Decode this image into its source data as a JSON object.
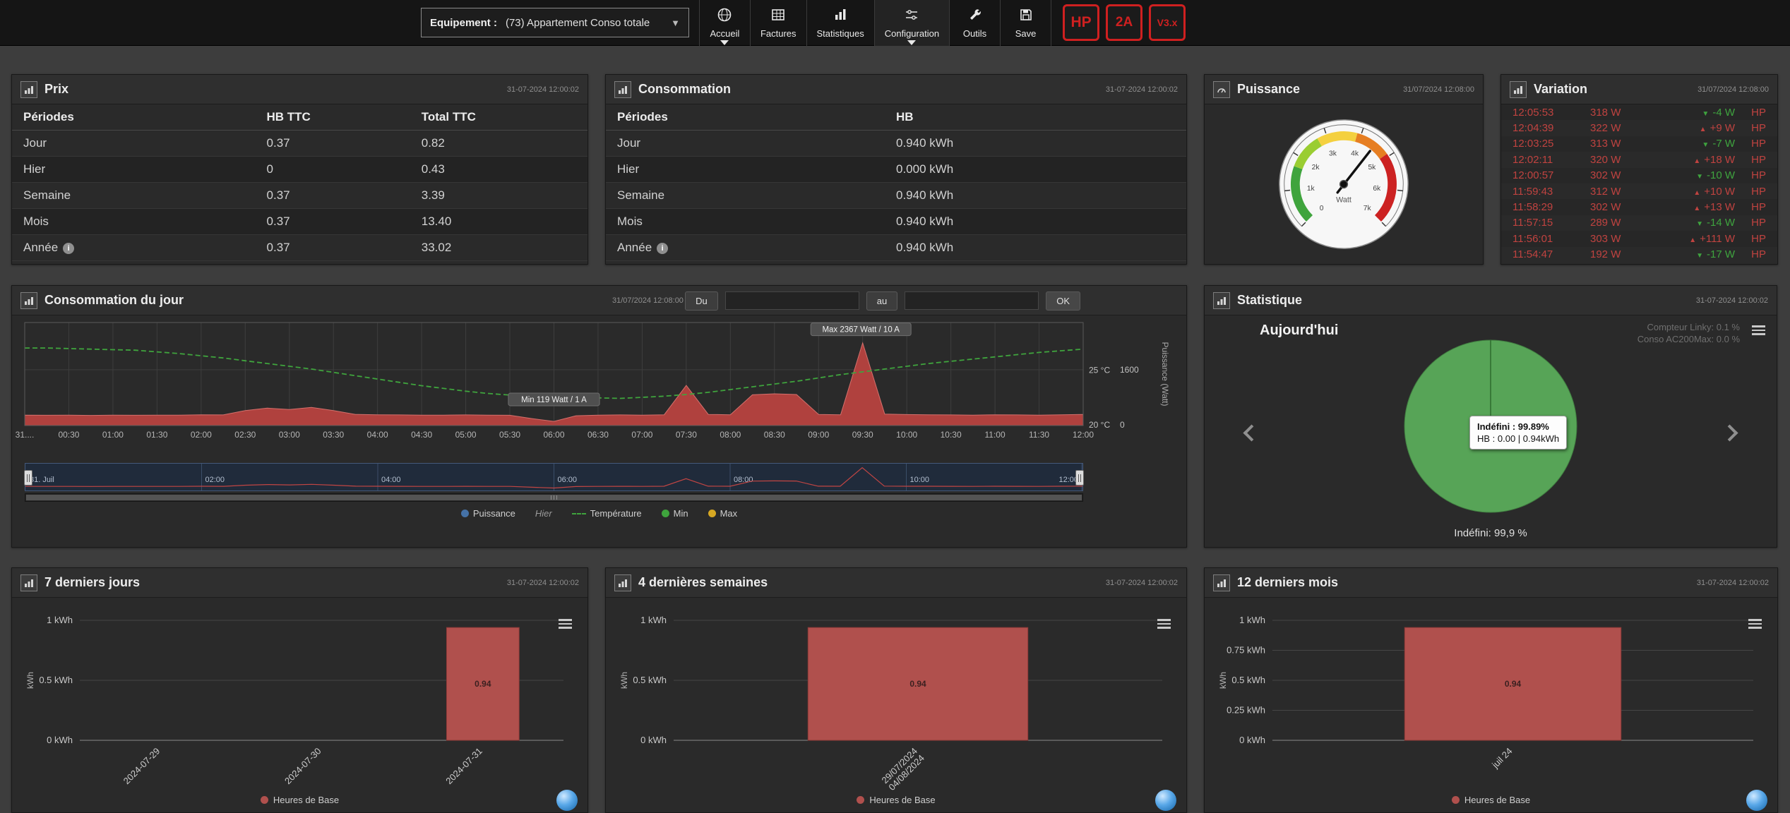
{
  "topbar": {
    "equipment_label": "Equipement :",
    "equipment_value": "(73) Appartement Conso totale",
    "nav": [
      {
        "id": "accueil",
        "label": "Accueil",
        "icon": "globe-icon",
        "dropdown": true
      },
      {
        "id": "factures",
        "label": "Factures",
        "icon": "invoices-icon",
        "dropdown": false
      },
      {
        "id": "statistiques",
        "label": "Statistiques",
        "icon": "bar-chart-icon",
        "dropdown": false
      },
      {
        "id": "configuration",
        "label": "Configuration",
        "icon": "sliders-icon",
        "dropdown": true
      },
      {
        "id": "outils",
        "label": "Outils",
        "icon": "wrench-icon",
        "dropdown": false
      },
      {
        "id": "save",
        "label": "Save",
        "icon": "floppy-icon",
        "dropdown": false
      }
    ],
    "badges": [
      {
        "text": "HP"
      },
      {
        "text": "2A"
      },
      {
        "text": "V3.x"
      }
    ]
  },
  "prix": {
    "title": "Prix",
    "timestamp": "31-07-2024 12:00:02",
    "columns": [
      "Périodes",
      "HB TTC",
      "Total TTC"
    ],
    "rows": [
      {
        "periode": "Jour",
        "hb": "0.37",
        "total": "0.82"
      },
      {
        "periode": "Hier",
        "hb": "0",
        "total": "0.43",
        "stripe": true
      },
      {
        "periode": "Semaine",
        "hb": "0.37",
        "total": "3.39"
      },
      {
        "periode": "Mois",
        "hb": "0.37",
        "total": "13.40",
        "stripe": true
      },
      {
        "periode": "Année",
        "hb": "0.37",
        "total": "33.02",
        "info": true
      }
    ]
  },
  "consommation": {
    "title": "Consommation",
    "timestamp": "31-07-2024 12:00:02",
    "columns": [
      "Périodes",
      "HB"
    ],
    "rows": [
      {
        "periode": "Jour",
        "hb": "0.940 kWh"
      },
      {
        "periode": "Hier",
        "hb": "0.000 kWh",
        "stripe": true
      },
      {
        "periode": "Semaine",
        "hb": "0.940 kWh"
      },
      {
        "periode": "Mois",
        "hb": "0.940 kWh",
        "stripe": true
      },
      {
        "periode": "Année",
        "hb": "0.940 kWh",
        "info": true
      }
    ]
  },
  "puissance": {
    "title": "Puissance",
    "timestamp": "31/07/2024 12:08:00",
    "gauge": {
      "unit": "Watt",
      "labels": [
        "0",
        "1k",
        "2k",
        "3k",
        "4k",
        "5k",
        "6k",
        "7k"
      ]
    }
  },
  "variation": {
    "title": "Variation",
    "timestamp": "31/07/2024 12:08:00",
    "rows": [
      {
        "time": "12:05:53",
        "watts": "318 W",
        "delta": "-4 W",
        "dir": "down",
        "icon": "arrow-down-icon",
        "tarif": "HP"
      },
      {
        "time": "12:04:39",
        "watts": "322 W",
        "delta": "+9 W",
        "dir": "up",
        "icon": "arrow-up-icon",
        "tarif": "HP"
      },
      {
        "time": "12:03:25",
        "watts": "313 W",
        "delta": "-7 W",
        "dir": "down",
        "icon": "arrow-down-icon",
        "tarif": "HP"
      },
      {
        "time": "12:02:11",
        "watts": "320 W",
        "delta": "+18 W",
        "dir": "up",
        "icon": "arrow-up-icon",
        "tarif": "HP"
      },
      {
        "time": "12:00:57",
        "watts": "302 W",
        "delta": "-10 W",
        "dir": "down",
        "icon": "arrow-down-icon",
        "tarif": "HP"
      },
      {
        "time": "11:59:43",
        "watts": "312 W",
        "delta": "+10 W",
        "dir": "up",
        "icon": "arrow-up-icon",
        "tarif": "HP"
      },
      {
        "time": "11:58:29",
        "watts": "302 W",
        "delta": "+13 W",
        "dir": "up",
        "icon": "arrow-up-icon",
        "tarif": "HP"
      },
      {
        "time": "11:57:15",
        "watts": "289 W",
        "delta": "-14 W",
        "dir": "down",
        "icon": "arrow-down-icon",
        "tarif": "HP"
      },
      {
        "time": "11:56:01",
        "watts": "303 W",
        "delta": "+111 W",
        "dir": "up",
        "icon": "arrow-up-icon",
        "tarif": "HP"
      },
      {
        "time": "11:54:47",
        "watts": "192 W",
        "delta": "-17 W",
        "dir": "down",
        "icon": "arrow-down-icon",
        "tarif": "HP"
      }
    ]
  },
  "day_panel": {
    "title": "Consommation du jour",
    "timestamp": "31/07/2024 12:08:00",
    "du_label": "Du",
    "au_label": "au",
    "ok_label": "OK",
    "from_value": "",
    "to_value": ""
  },
  "stat_panel": {
    "title": "Statistique",
    "timestamp": "31-07-2024 12:00:02",
    "today_label": "Aujourd'hui",
    "meta_line1": "Compteur Linky: 0.1 %",
    "meta_line2": "Conso AC200Max: 0.0 %"
  },
  "days7_panel": {
    "title": "7 derniers jours",
    "timestamp": "31-07-2024 12:00:02"
  },
  "weeks4_panel": {
    "title": "4 dernières semaines",
    "timestamp": "31-07-2024 12:00:02"
  },
  "months12_panel": {
    "title": "12 derniers mois",
    "timestamp": "31-07-2024 12:00:02"
  },
  "chart_data": [
    {
      "id": "day",
      "type": "line",
      "title": "Consommation du jour",
      "x_tick_labels": [
        "31....",
        "00:30",
        "01:00",
        "01:30",
        "02:00",
        "02:30",
        "03:00",
        "03:30",
        "04:00",
        "04:30",
        "05:00",
        "05:30",
        "06:00",
        "06:30",
        "07:00",
        "07:30",
        "08:00",
        "08:30",
        "09:00",
        "09:30",
        "10:00",
        "10:30",
        "11:00",
        "11:30",
        "12:00"
      ],
      "series": [
        {
          "name": "Puissance",
          "unit": "Watt",
          "color": "#b0413e",
          "style": "area",
          "values": [
            300,
            295,
            300,
            290,
            300,
            295,
            300,
            300,
            310,
            305,
            430,
            500,
            460,
            520,
            430,
            320,
            310,
            305,
            300,
            300,
            305,
            300,
            295,
            200,
            119,
            280,
            300,
            305,
            300,
            310,
            1150,
            320,
            310,
            880,
            910,
            890,
            320,
            310,
            2367,
            330,
            315,
            310,
            305,
            300,
            310,
            305,
            300,
            310,
            318
          ]
        },
        {
          "name": "Température",
          "unit": "°C",
          "color": "#3fa43d",
          "style": "dashed-line",
          "values": [
            27.0,
            27.0,
            26.95,
            26.9,
            26.85,
            26.8,
            26.65,
            26.5,
            26.3,
            26.1,
            25.85,
            25.6,
            25.35,
            25.1,
            24.8,
            24.5,
            24.2,
            23.9,
            23.6,
            23.35,
            23.1,
            22.9,
            22.75,
            22.6,
            22.5,
            22.45,
            22.5,
            22.45,
            22.55,
            22.65,
            22.8,
            23.0,
            23.25,
            23.5,
            23.75,
            24.0,
            24.3,
            24.6,
            24.85,
            25.1,
            25.35,
            25.6,
            25.8,
            26.0,
            26.2,
            26.4,
            26.6,
            26.75,
            26.9
          ]
        }
      ],
      "watt_axis": {
        "label": "Puissance (Watt)",
        "ticks": [
          0,
          1600
        ],
        "max": 2950
      },
      "temp_axis": {
        "ticks": [
          "20 °C",
          "25 °C"
        ],
        "min": 20,
        "max": 29.3
      },
      "annotations": [
        {
          "text": "Max 2367 Watt / 10 A",
          "fx": 0.79,
          "fy": 0.08
        },
        {
          "text": "Min 119 Watt / 1 A",
          "fx": 0.5,
          "fy": 0.76
        }
      ],
      "legend": [
        {
          "label": "Puissance",
          "marker": "dot",
          "color": "#4572a7"
        },
        {
          "label": "Hier",
          "marker": "none",
          "style": "italic"
        },
        {
          "label": "Température",
          "marker": "dash",
          "color": "#3fa43d"
        },
        {
          "label": "Min",
          "marker": "dot",
          "color": "#3fa43d"
        },
        {
          "label": "Max",
          "marker": "dot",
          "color": "#d6a722"
        }
      ],
      "navigator": {
        "labels": [
          "31. Juil",
          "02:00",
          "04:00",
          "06:00",
          "08:00",
          "10:00",
          "12:00"
        ]
      }
    },
    {
      "id": "statpie",
      "type": "pie",
      "period": "Aujourd'hui",
      "slices": [
        {
          "label": "Indéfini",
          "value": 99.89,
          "color": "#57a457"
        },
        {
          "label": "HB",
          "value": 0.11,
          "color": "#2f6b2f"
        }
      ],
      "tooltip": [
        "Indéfini : 99.89%",
        "HB : 0.00 | 0.94kWh"
      ],
      "center_label": "Indéfini: 99,9 %"
    },
    {
      "id": "days7",
      "type": "bar",
      "title": "7 derniers jours",
      "categories": [
        [
          "2024-07-29"
        ],
        [
          "2024-07-30"
        ],
        [
          "2024-07-31"
        ]
      ],
      "values": [
        0,
        0,
        0.94
      ],
      "value_labels": [
        "",
        "",
        "0.94"
      ],
      "bar_color": "#b0504d",
      "ylabel": "kWh",
      "ymax": 1,
      "yticks": [
        {
          "v": 0,
          "label": "0 kWh"
        },
        {
          "v": 0.5,
          "label": "0.5 kWh"
        },
        {
          "v": 1,
          "label": "1 kWh"
        }
      ],
      "series_name": "Heures de Base"
    },
    {
      "id": "weeks4",
      "type": "bar",
      "title": "4 dernières semaines",
      "categories": [
        [
          "29/07/2024",
          "04/08/2024"
        ]
      ],
      "values": [
        0.94
      ],
      "value_labels": [
        "0.94"
      ],
      "bar_color": "#b0504d",
      "ylabel": "kWh",
      "ymax": 1,
      "yticks": [
        {
          "v": 0,
          "label": "0 kWh"
        },
        {
          "v": 0.5,
          "label": "0.5 kWh"
        },
        {
          "v": 1,
          "label": "1 kWh"
        }
      ],
      "series_name": "Heures de Base"
    },
    {
      "id": "months12",
      "type": "bar",
      "title": "12 derniers mois",
      "categories": [
        [
          "juil 24"
        ]
      ],
      "values": [
        0.94
      ],
      "value_labels": [
        "0.94"
      ],
      "bar_color": "#b0504d",
      "ylabel": "kWh",
      "ymax": 1,
      "yticks": [
        {
          "v": 0,
          "label": "0 kWh"
        },
        {
          "v": 0.25,
          "label": "0.25 kWh"
        },
        {
          "v": 0.5,
          "label": "0.5 kWh"
        },
        {
          "v": 0.75,
          "label": "0.75 kWh"
        },
        {
          "v": 1,
          "label": "1 kWh"
        }
      ],
      "series_name": "Heures de Base"
    }
  ]
}
